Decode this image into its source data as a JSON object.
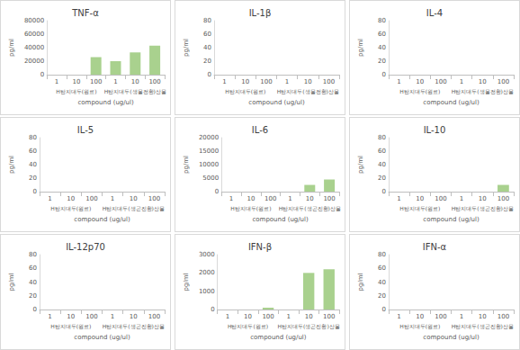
{
  "chart_data": [
    {
      "type": "bar",
      "title": "TNF-α",
      "y_label": "pg/ml",
      "x_label": "compound (ug/ul)",
      "categories": [
        "1",
        "10",
        "100",
        "1",
        "10",
        "100"
      ],
      "category_groups": [
        "H탄지대두(원료)",
        "H탄지대두(생물전환)산물"
      ],
      "values": [
        0,
        0,
        26000,
        20000,
        33000,
        43000
      ],
      "color": "#a9d18e",
      "ylim": [
        0,
        80000
      ],
      "yticks": [
        0,
        20000,
        40000,
        60000,
        80000
      ],
      "grid": false
    },
    {
      "type": "bar",
      "title": "IL-1β",
      "y_label": "pg/ml",
      "x_label": "compound (ug/ul)",
      "categories": [
        "1",
        "10",
        "100",
        "1",
        "10",
        "100"
      ],
      "category_groups": [
        "H탄지대두(원료)",
        "H탄지대두(생물전환)산물"
      ],
      "values": [
        0,
        0,
        0,
        0,
        0,
        0
      ],
      "color": "#a9d18e",
      "ylim": [
        0,
        80
      ],
      "yticks": [
        0,
        20,
        40,
        60,
        80
      ],
      "grid": false
    },
    {
      "type": "bar",
      "title": "IL-4",
      "y_label": "pg/ml",
      "x_label": "compound (ug/ul)",
      "categories": [
        "1",
        "10",
        "100",
        "1",
        "10",
        "100"
      ],
      "category_groups": [
        "H탄지대두(원료)",
        "H탄지대두(생물전환)산물"
      ],
      "values": [
        0,
        0,
        0,
        0,
        0,
        0
      ],
      "color": "#a9d18e",
      "ylim": [
        0,
        80
      ],
      "yticks": [
        0,
        20,
        40,
        60,
        80
      ],
      "grid": false
    },
    {
      "type": "bar",
      "title": "IL-5",
      "y_label": "pg/ml",
      "x_label": "compound (ug/ul)",
      "categories": [
        "1",
        "10",
        "100",
        "1",
        "10",
        "100"
      ],
      "category_groups": [
        "H탄지대두(원료)",
        "H탄지대두(생곤진환)산물"
      ],
      "values": [
        0,
        0,
        0,
        0,
        0,
        0
      ],
      "color": "#a9d18e",
      "ylim": [
        0,
        80
      ],
      "yticks": [
        0,
        20,
        40,
        60,
        80
      ],
      "grid": false
    },
    {
      "type": "bar",
      "title": "IL-6",
      "y_label": "pg/ml",
      "x_label": "compound (ug/ul)",
      "categories": [
        "1",
        "10",
        "100",
        "1",
        "10",
        "100"
      ],
      "category_groups": [
        "H탄지대두(원료)",
        "H탄지대두(생곤진환)산물"
      ],
      "values": [
        0,
        0,
        0,
        0,
        2500,
        4500
      ],
      "color": "#a9d18e",
      "ylim": [
        0,
        20000
      ],
      "yticks": [
        0,
        5000,
        10000,
        15000,
        20000
      ],
      "grid": false
    },
    {
      "type": "bar",
      "title": "IL-10",
      "y_label": "pg/ml",
      "x_label": "compound (ug/ul)",
      "categories": [
        "1",
        "10",
        "100",
        "1",
        "10",
        "100"
      ],
      "category_groups": [
        "H탄지대두(원료)",
        "H탄지대두(생곤진환)산물"
      ],
      "values": [
        0,
        0,
        0,
        0,
        0,
        10
      ],
      "color": "#a9d18e",
      "ylim": [
        0,
        80
      ],
      "yticks": [
        0,
        20,
        40,
        60,
        80
      ],
      "grid": false
    },
    {
      "type": "bar",
      "title": "IL-12p70",
      "y_label": "pg/ml",
      "x_label": "compound (ug/ul)",
      "categories": [
        "1",
        "10",
        "100",
        "1",
        "10",
        "100"
      ],
      "category_groups": [
        "H탄지대두(원료)",
        "H탄지대두(생곤진환)산물"
      ],
      "values": [
        0,
        0,
        0,
        0,
        0,
        0
      ],
      "color": "#a9d18e",
      "ylim": [
        0,
        80
      ],
      "yticks": [
        0,
        20,
        40,
        60,
        80
      ],
      "grid": false
    },
    {
      "type": "bar",
      "title": "IFN-β",
      "y_label": "pg/ml",
      "x_label": "compound (ug/ul)",
      "categories": [
        "1",
        "10",
        "100",
        "1",
        "10",
        "100"
      ],
      "category_groups": [
        "H탄지대두(원료)",
        "H탄지대두(생곤진환)산물"
      ],
      "values": [
        0,
        0,
        100,
        0,
        2000,
        2200
      ],
      "color": "#a9d18e",
      "ylim": [
        0,
        3000
      ],
      "yticks": [
        0,
        1000,
        2000,
        3000
      ],
      "grid": false
    },
    {
      "type": "bar",
      "title": "IFN-α",
      "y_label": "pg/ml",
      "x_label": "compound (ug/ul)",
      "categories": [
        "1",
        "10",
        "100",
        "1",
        "10",
        "100"
      ],
      "category_groups": [
        "H탄지대두(원료)",
        "H탄지대두(생곤진환)산물"
      ],
      "values": [
        0,
        0,
        0,
        0,
        0,
        0
      ],
      "color": "#a9d18e",
      "ylim": [
        0,
        80
      ],
      "yticks": [
        0,
        20,
        40,
        60,
        80
      ],
      "grid": false
    }
  ]
}
